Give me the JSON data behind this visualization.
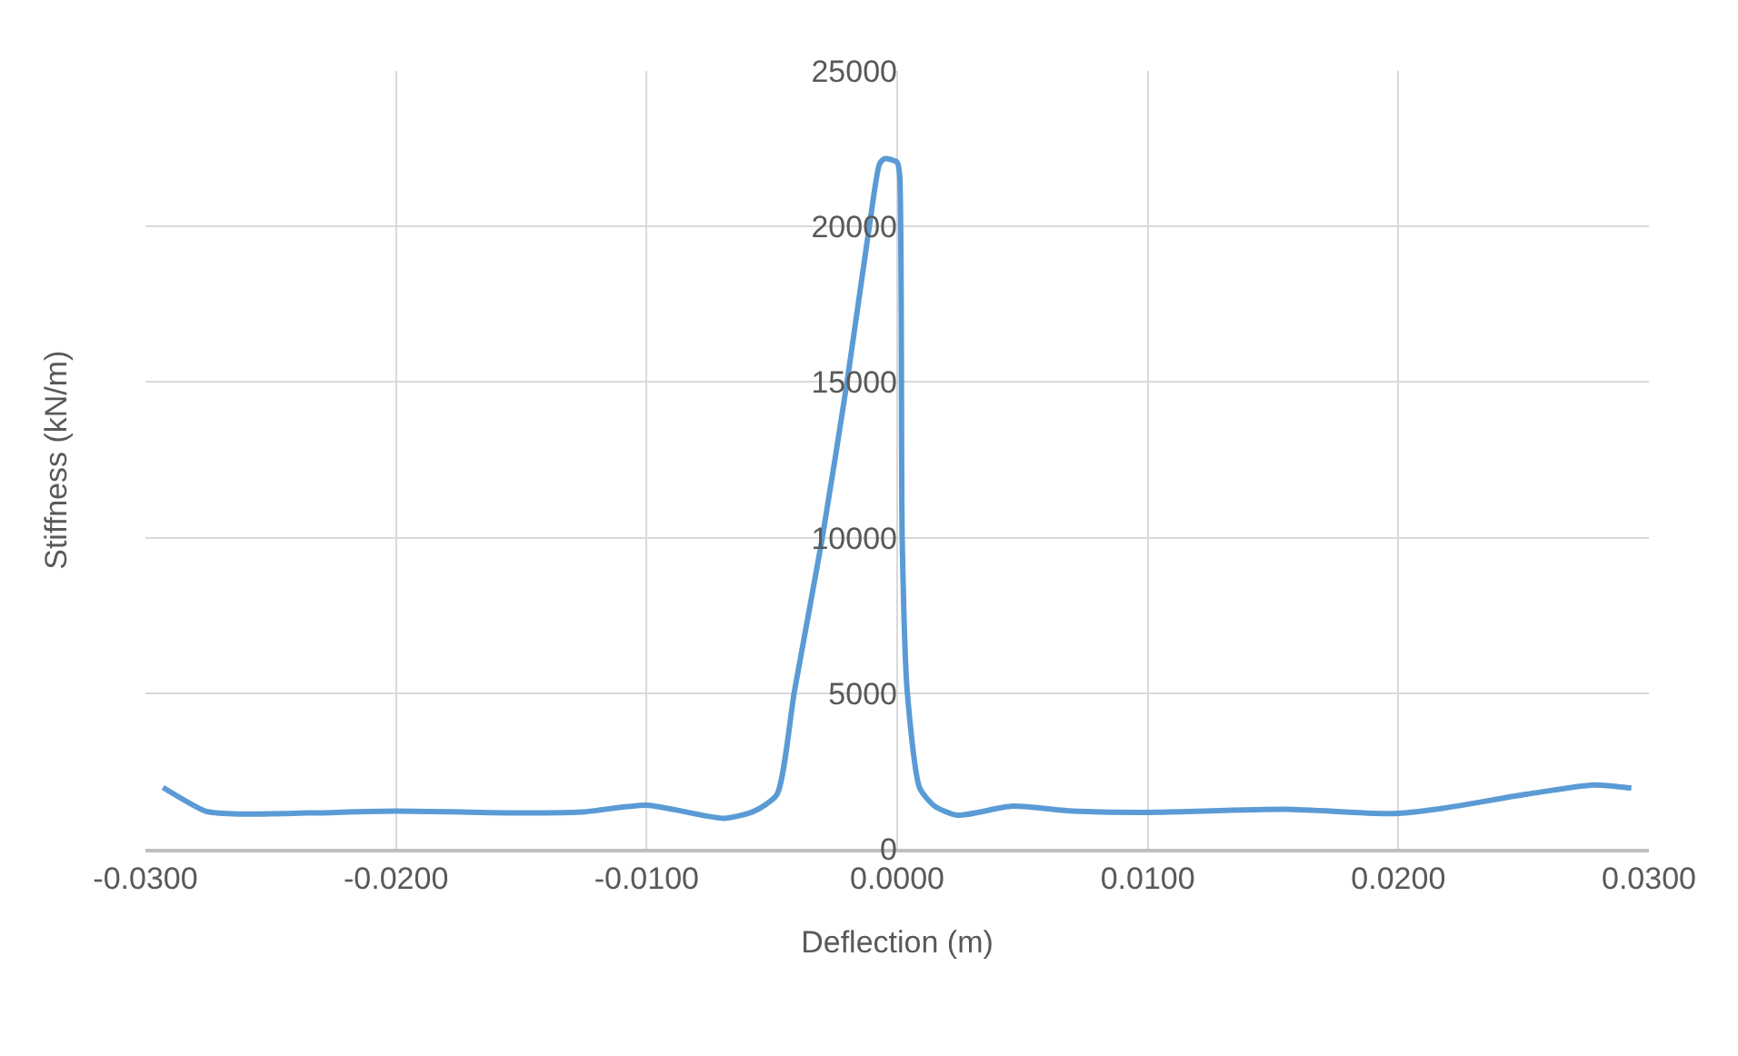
{
  "chart_data": {
    "type": "line",
    "xlabel": "Deflection (m)",
    "ylabel": "Stiffness (kN/m)",
    "xlim": [
      -0.03,
      0.03
    ],
    "xticks": [
      {
        "value": -0.03,
        "label": "-0.0300"
      },
      {
        "value": -0.02,
        "label": "-0.0200"
      },
      {
        "value": -0.01,
        "label": "-0.0100"
      },
      {
        "value": 0,
        "label": "0.0000"
      },
      {
        "value": 0.01,
        "label": "0.0100"
      },
      {
        "value": 0.02,
        "label": "0.0200"
      },
      {
        "value": 0.03,
        "label": "0.0300"
      }
    ],
    "ylim": [
      0,
      25000
    ],
    "yticks": [
      0,
      5000,
      10000,
      15000,
      20000,
      25000
    ],
    "grid": true,
    "marker": "none",
    "line_style": "solid",
    "series": [
      {
        "color": "#5b9bd5",
        "x": [
          -0.0293,
          -0.0276,
          -0.0264,
          -0.0235,
          -0.02,
          -0.0147,
          -0.0126,
          -0.01,
          -0.0069,
          -0.0057,
          -0.0048,
          -0.0041,
          -0.003,
          -0.002,
          -0.0011,
          -0.0007,
          -0.0005,
          0.0,
          0.0001,
          0.0002,
          0.0004,
          0.0009,
          0.0015,
          0.0024,
          0.0046,
          0.007,
          0.0099,
          0.0155,
          0.0198,
          0.0215,
          0.0251,
          0.0278,
          0.0293
        ],
        "values": [
          1970,
          1210,
          1120,
          1150,
          1210,
          1150,
          1180,
          1400,
          980,
          1210,
          1740,
          5070,
          9940,
          15000,
          20070,
          22020,
          22180,
          22060,
          21630,
          9940,
          5070,
          1950,
          1370,
          1080,
          1370,
          1210,
          1170,
          1270,
          1130,
          1270,
          1750,
          2050,
          1950
        ]
      }
    ]
  }
}
